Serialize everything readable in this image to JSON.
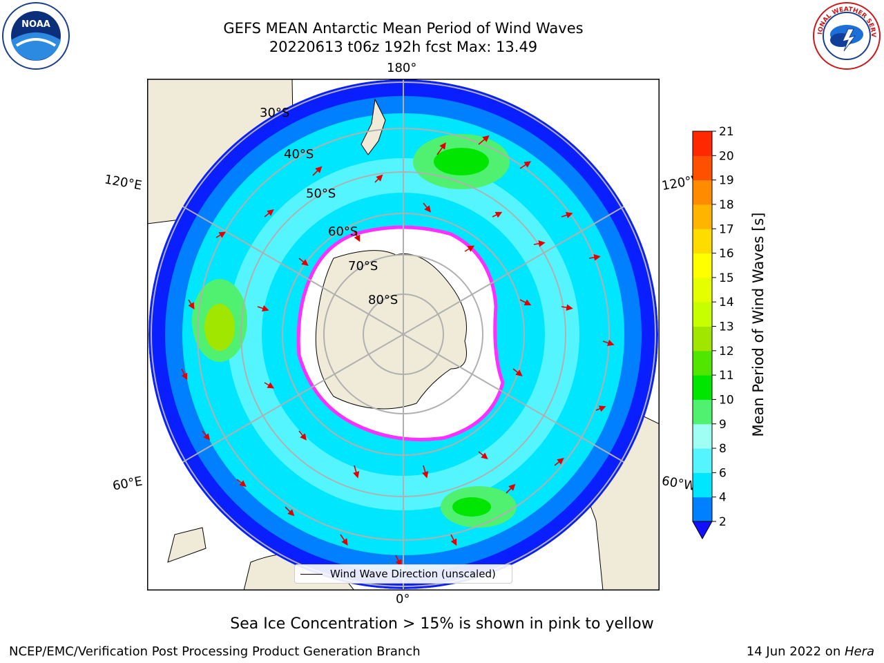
{
  "title": {
    "line1": "GEFS MEAN Antarctic Mean Period of Wind Waves",
    "line2": "20220613 t06z 192h fcst   Max: 13.49"
  },
  "logos": {
    "left": {
      "name": "noaa-logo",
      "text": "NOAA"
    },
    "right": {
      "name": "nws-logo",
      "text": "NATIONAL WEATHER SERVICE"
    }
  },
  "map": {
    "projection": "south-polar-stereographic",
    "edge_longitudes": {
      "top": "180°",
      "bottom": "0°",
      "upper_left": "120°E",
      "upper_right": "120°W",
      "lower_left": "60°E",
      "lower_right": "60°W"
    },
    "latitude_labels": [
      "30°S",
      "40°S",
      "50°S",
      "60°S",
      "70°S",
      "80°S"
    ],
    "colors": {
      "ocean_low": "#0a1fff",
      "ocean_2_4": "#0080ff",
      "ocean_4_6": "#00e6ff",
      "ocean_6_8": "#55f5ff",
      "ocean_8_9": "#a0fff5",
      "ocean_9_10": "#50f070",
      "land": "#efebd8",
      "ice": "#ffffff",
      "ice_edge": "#ff30ff",
      "arrows": "#e00000",
      "grid": "#b0b0b0"
    },
    "legend": "Wind Wave Direction (unscaled)"
  },
  "colorbar": {
    "label": "Mean Period of Wind Waves [s]",
    "ticks": [
      "2",
      "4",
      "6",
      "8",
      "9",
      "10",
      "11",
      "12",
      "13",
      "14",
      "15",
      "16",
      "17",
      "18",
      "19",
      "20",
      "21"
    ],
    "colors": [
      "#0080ff",
      "#00e6ff",
      "#55f5ff",
      "#a0fff5",
      "#50f070",
      "#00e600",
      "#50e600",
      "#a0e600",
      "#c8ff00",
      "#e6ff00",
      "#ffff00",
      "#ffdc00",
      "#ffb400",
      "#ff8c00",
      "#ff5000",
      "#ff2800",
      "#ff0000"
    ],
    "extend_color": "#1010ff"
  },
  "subtitle": "Sea Ice Concentration > 15% is shown in pink to yellow",
  "footer": {
    "left": "NCEP/EMC/Verification Post Processing Product Generation Branch",
    "right_prefix": "14 Jun 2022 on ",
    "right_italic": "Hera"
  }
}
